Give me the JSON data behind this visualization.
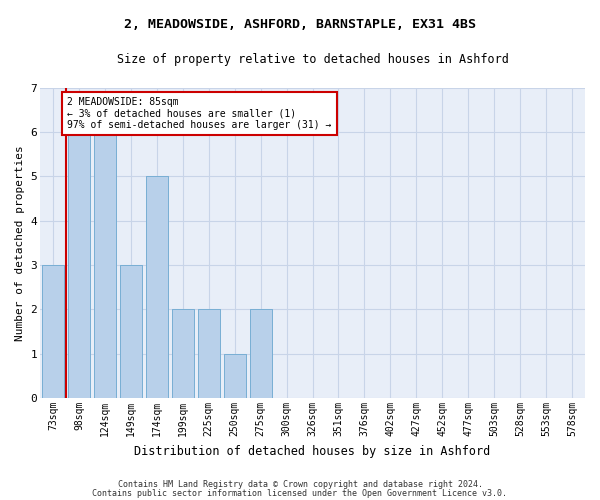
{
  "title": "2, MEADOWSIDE, ASHFORD, BARNSTAPLE, EX31 4BS",
  "subtitle": "Size of property relative to detached houses in Ashford",
  "xlabel": "Distribution of detached houses by size in Ashford",
  "ylabel": "Number of detached properties",
  "bar_labels": [
    "73sqm",
    "98sqm",
    "124sqm",
    "149sqm",
    "174sqm",
    "199sqm",
    "225sqm",
    "250sqm",
    "275sqm",
    "300sqm",
    "326sqm",
    "351sqm",
    "376sqm",
    "402sqm",
    "427sqm",
    "452sqm",
    "477sqm",
    "503sqm",
    "528sqm",
    "553sqm",
    "578sqm"
  ],
  "bar_heights": [
    3,
    6,
    6,
    3,
    5,
    2,
    2,
    1,
    2,
    0,
    0,
    0,
    0,
    0,
    0,
    0,
    0,
    0,
    0,
    0,
    0
  ],
  "bar_color": "#b8d0ea",
  "bar_edgecolor": "#7aafd4",
  "grid_color": "#c8d4e8",
  "bg_color": "#e8eef8",
  "ylim": [
    0,
    7
  ],
  "yticks": [
    0,
    1,
    2,
    3,
    4,
    5,
    6,
    7
  ],
  "annotation_text": "2 MEADOWSIDE: 85sqm\n← 3% of detached houses are smaller (1)\n97% of semi-detached houses are larger (31) →",
  "annotation_box_color": "#ffffff",
  "annotation_box_edge": "#cc0000",
  "vline_color": "#cc0000",
  "footer1": "Contains HM Land Registry data © Crown copyright and database right 2024.",
  "footer2": "Contains public sector information licensed under the Open Government Licence v3.0."
}
